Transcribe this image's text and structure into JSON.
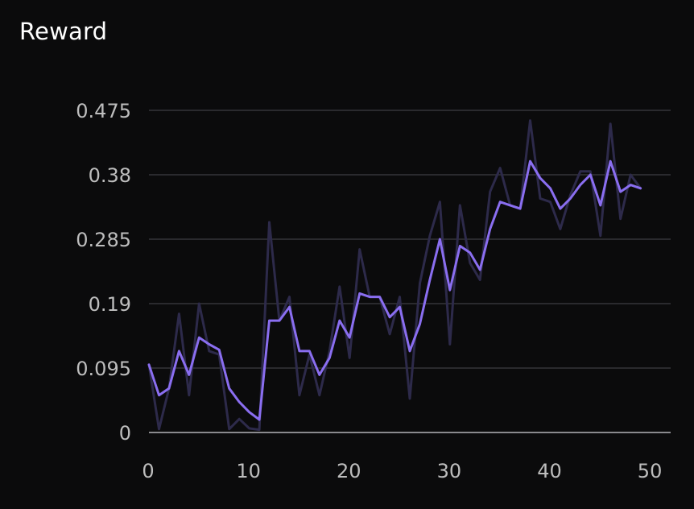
{
  "chart_data": {
    "type": "line",
    "title": "Reward",
    "xlabel": "",
    "ylabel": "",
    "xlim": [
      0,
      52
    ],
    "ylim": [
      0,
      0.475
    ],
    "x_ticks": [
      "0",
      "10",
      "20",
      "30",
      "40",
      "50"
    ],
    "y_ticks": [
      "0",
      "0.095",
      "0.19",
      "0.285",
      "0.38",
      "0.475"
    ],
    "grid": "horizontal",
    "legend": "none",
    "series": [
      {
        "role": "raw",
        "color": "#2d2a4a",
        "x": [
          0,
          1,
          2,
          3,
          4,
          5,
          6,
          7,
          8,
          9,
          10,
          11,
          12,
          13,
          14,
          15,
          16,
          17,
          18,
          19,
          20,
          21,
          22,
          23,
          24,
          25,
          26,
          27,
          28,
          29,
          30,
          31,
          32,
          33,
          34,
          35,
          36,
          37,
          38,
          39,
          40,
          41,
          42,
          43,
          44,
          45,
          46,
          47,
          48,
          49
        ],
        "values": [
          0.1,
          0.005,
          0.065,
          0.175,
          0.055,
          0.19,
          0.12,
          0.115,
          0.005,
          0.02,
          0.006,
          0.004,
          0.31,
          0.165,
          0.2,
          0.055,
          0.115,
          0.055,
          0.12,
          0.215,
          0.11,
          0.27,
          0.2,
          0.2,
          0.145,
          0.2,
          0.05,
          0.22,
          0.29,
          0.34,
          0.13,
          0.335,
          0.25,
          0.225,
          0.355,
          0.39,
          0.335,
          0.33,
          0.46,
          0.345,
          0.34,
          0.3,
          0.35,
          0.385,
          0.385,
          0.29,
          0.455,
          0.315,
          0.38,
          0.36
        ]
      },
      {
        "role": "smoothed",
        "color": "#8a6ef0",
        "x": [
          0,
          1,
          2,
          3,
          4,
          5,
          6,
          7,
          8,
          9,
          10,
          11,
          12,
          13,
          14,
          15,
          16,
          17,
          18,
          19,
          20,
          21,
          22,
          23,
          24,
          25,
          26,
          27,
          28,
          29,
          30,
          31,
          32,
          33,
          34,
          35,
          36,
          37,
          38,
          39,
          40,
          41,
          42,
          43,
          44,
          45,
          46,
          47,
          48,
          49
        ],
        "values": [
          0.1,
          0.055,
          0.065,
          0.12,
          0.085,
          0.14,
          0.13,
          0.122,
          0.065,
          0.045,
          0.03,
          0.019,
          0.165,
          0.165,
          0.185,
          0.12,
          0.12,
          0.085,
          0.11,
          0.165,
          0.14,
          0.205,
          0.2,
          0.2,
          0.17,
          0.185,
          0.12,
          0.16,
          0.225,
          0.285,
          0.21,
          0.275,
          0.265,
          0.24,
          0.3,
          0.34,
          0.335,
          0.33,
          0.4,
          0.375,
          0.36,
          0.33,
          0.345,
          0.365,
          0.38,
          0.335,
          0.4,
          0.355,
          0.365,
          0.36
        ]
      }
    ]
  }
}
